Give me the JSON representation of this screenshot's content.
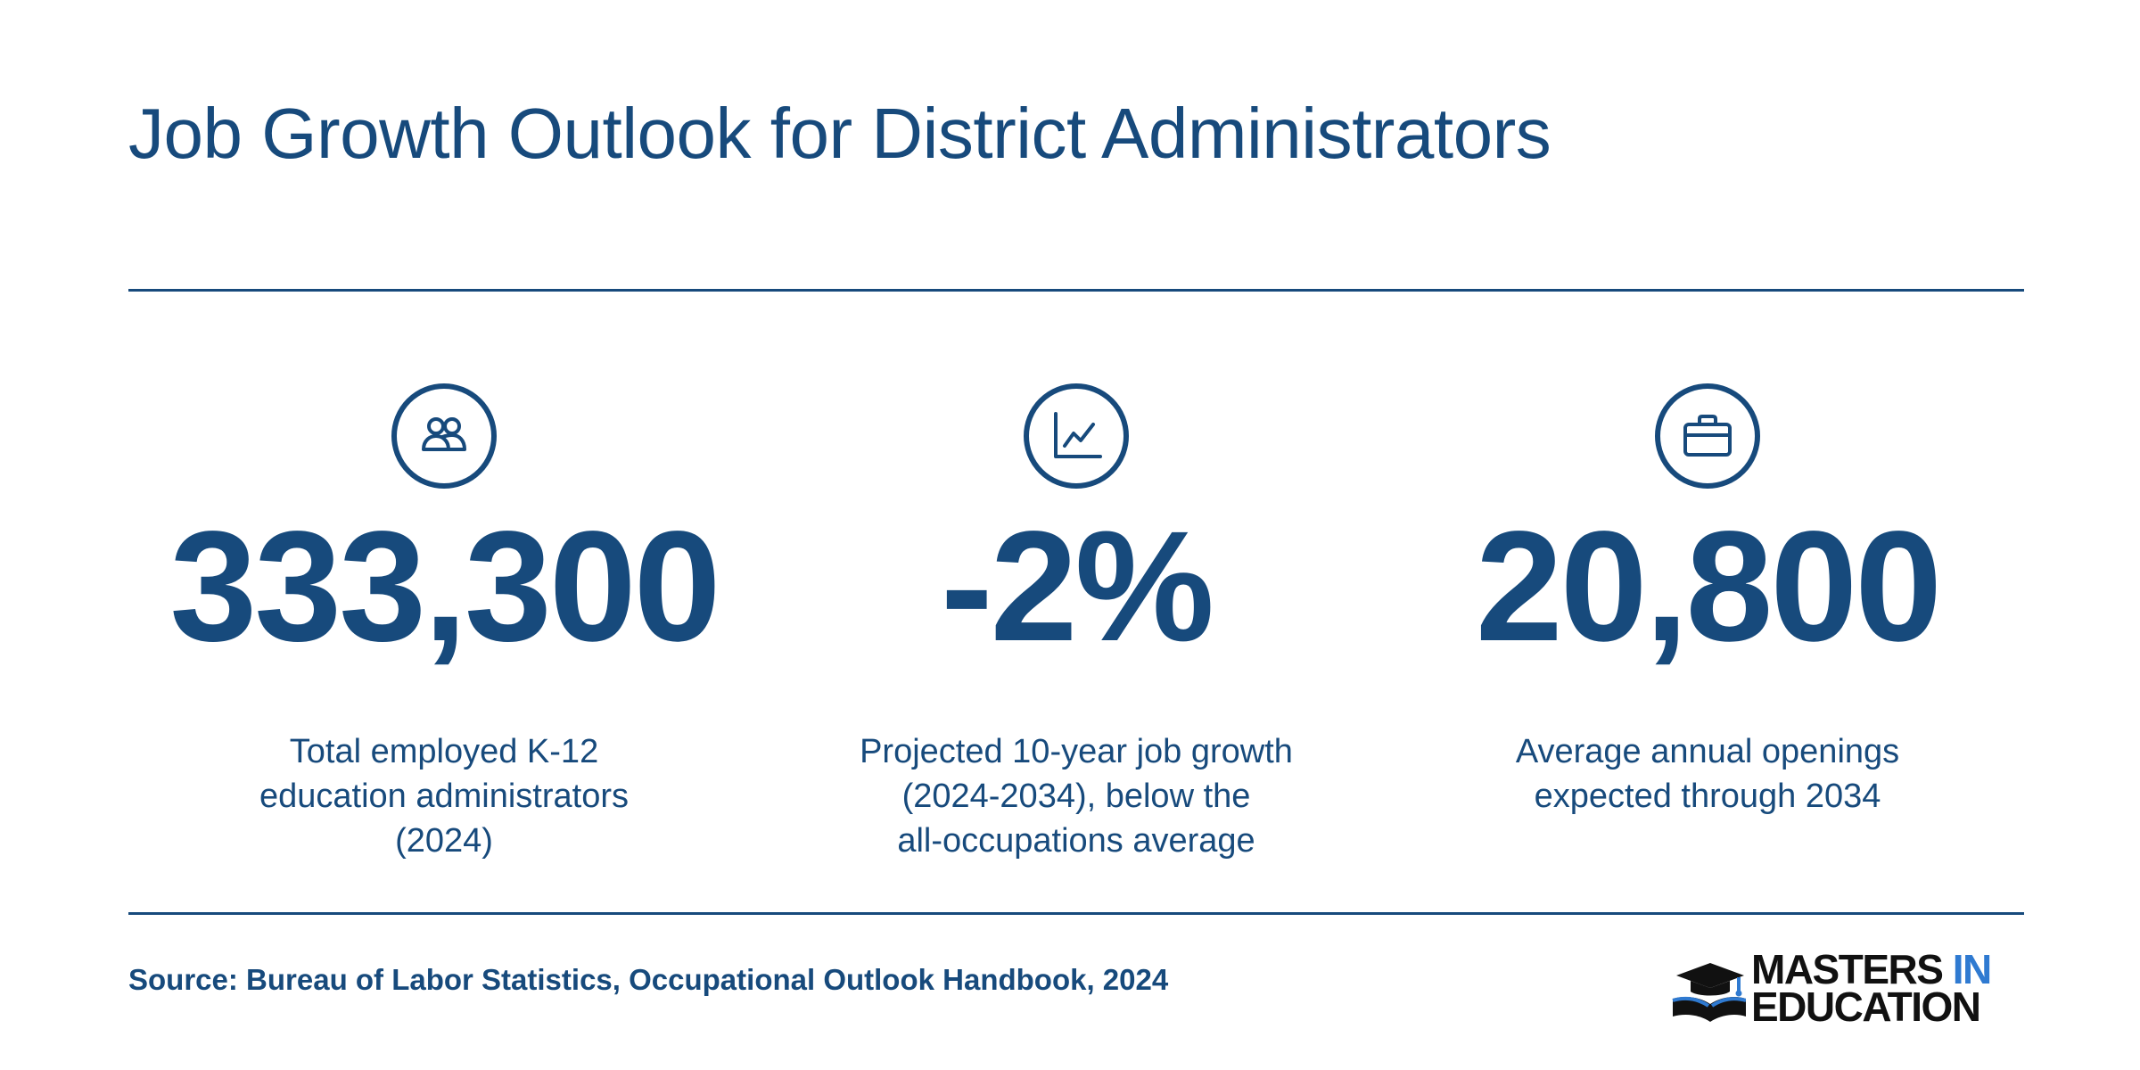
{
  "title": "Job Growth Outlook for District Administrators",
  "stats": [
    {
      "icon": "people-icon",
      "value": "333,300",
      "description": [
        "Total employed K-12",
        "education administrators",
        "(2024)"
      ]
    },
    {
      "icon": "line-chart-icon",
      "value": "-2%",
      "description": [
        "Projected 10-year job growth",
        "(2024-2034), below the",
        "all-occupations average"
      ]
    },
    {
      "icon": "briefcase-icon",
      "value": "20,800",
      "description": [
        "Average annual openings",
        "expected through 2034"
      ]
    }
  ],
  "source": "Source: Bureau of Labor Statistics, Occupational Outlook Handbook, 2024",
  "logo": {
    "line1": "MASTERS",
    "line1_accent": "IN",
    "line2": "EDUCATION"
  },
  "colors": {
    "primary": "#174a7c",
    "logo_accent": "#2f7ad1",
    "logo_dark": "#111111"
  }
}
